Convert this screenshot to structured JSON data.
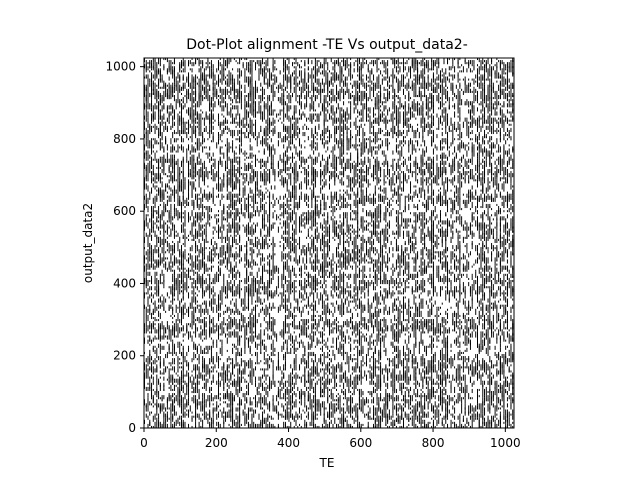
{
  "chart_data": {
    "type": "heatmap",
    "subtype": "dot-plot",
    "title": "Dot-Plot alignment -TE Vs output_data2-",
    "xlabel": "TE",
    "ylabel": "output_data2",
    "xlim": [
      0,
      1024
    ],
    "ylim": [
      1024,
      0
    ],
    "y_axis_inverted": true,
    "x_ticks": [
      0,
      200,
      400,
      600,
      800,
      1000
    ],
    "y_ticks": [
      0,
      200,
      400,
      600,
      800,
      1000
    ],
    "x_tick_labels": [
      "0",
      "200",
      "400",
      "600",
      "800",
      "1000"
    ],
    "y_tick_labels": [
      "0",
      "200",
      "400",
      "600",
      "800",
      "1000"
    ],
    "match_color": "#000000",
    "background_color": "#ffffff",
    "grid": false,
    "legend": "none",
    "approx_match_density": 0.33
  }
}
